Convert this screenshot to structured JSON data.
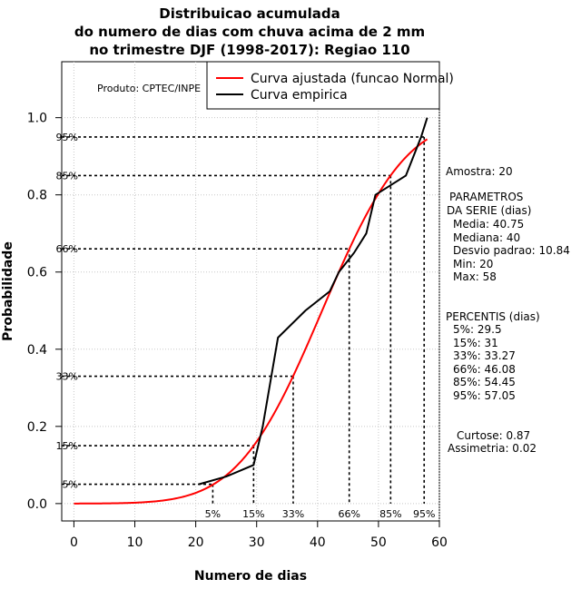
{
  "chart_data": {
    "type": "line",
    "title": [
      "Distribuicao acumulada",
      "do numero de dias com chuva acima de 2 mm",
      "no trimestre DJF (1998-2017): Regiao 110"
    ],
    "xlabel": "Numero de dias",
    "ylabel": "Probabilidade",
    "xlim": [
      -2,
      60
    ],
    "ylim": [
      -0.045,
      1.145
    ],
    "x_ticks": [
      0,
      10,
      20,
      30,
      40,
      50,
      60
    ],
    "y_ticks": [
      0.0,
      0.2,
      0.4,
      0.6,
      0.8,
      1.0
    ],
    "y_tick_labels": [
      "0.0",
      "0.2",
      "0.4",
      "0.6",
      "0.8",
      "1.0"
    ],
    "grid": true,
    "product_label": "Produto: CPTEC/INPE",
    "legend": [
      {
        "name": "Curva ajustada (funcao Normal)",
        "color": "#ff0000"
      },
      {
        "name": "Curva empirica",
        "color": "#000000"
      }
    ],
    "normal_fit": {
      "mean": 40.75,
      "sd": 10.84,
      "x_from": 0,
      "x_to": 58
    },
    "empirical": {
      "x": [
        20.5,
        25,
        29.5,
        31,
        33.5,
        38,
        42,
        43.5,
        46,
        48,
        49.5,
        54.5,
        57,
        58
      ],
      "y": [
        0.05,
        0.07,
        0.1,
        0.2,
        0.43,
        0.5,
        0.55,
        0.6,
        0.65,
        0.7,
        0.8,
        0.85,
        0.95,
        1.0
      ]
    },
    "percentiles": [
      {
        "label": "5%",
        "prob": 0.05,
        "x": 22.8
      },
      {
        "label": "15%",
        "prob": 0.15,
        "x": 29.5
      },
      {
        "label": "33%",
        "prob": 0.33,
        "x": 36
      },
      {
        "label": "66%",
        "prob": 0.66,
        "x": 45.2
      },
      {
        "label": "85%",
        "prob": 0.85,
        "x": 52
      },
      {
        "label": "95%",
        "prob": 0.95,
        "x": 57.5
      }
    ],
    "side_text": [
      "Amostra: 20",
      "PARAMETROS",
      "DA SERIE (dias)",
      "Media: 40.75",
      "Mediana: 40",
      "Desvio padrao: 10.84",
      "Min: 20",
      "Max: 58",
      "PERCENTIS (dias)",
      "5%: 29.5",
      "15%: 31",
      "33%: 33.27",
      "66%: 46.08",
      "85%: 54.45",
      "95%: 57.05",
      "Curtose: 0.87",
      "Assimetria: 0.02"
    ]
  }
}
